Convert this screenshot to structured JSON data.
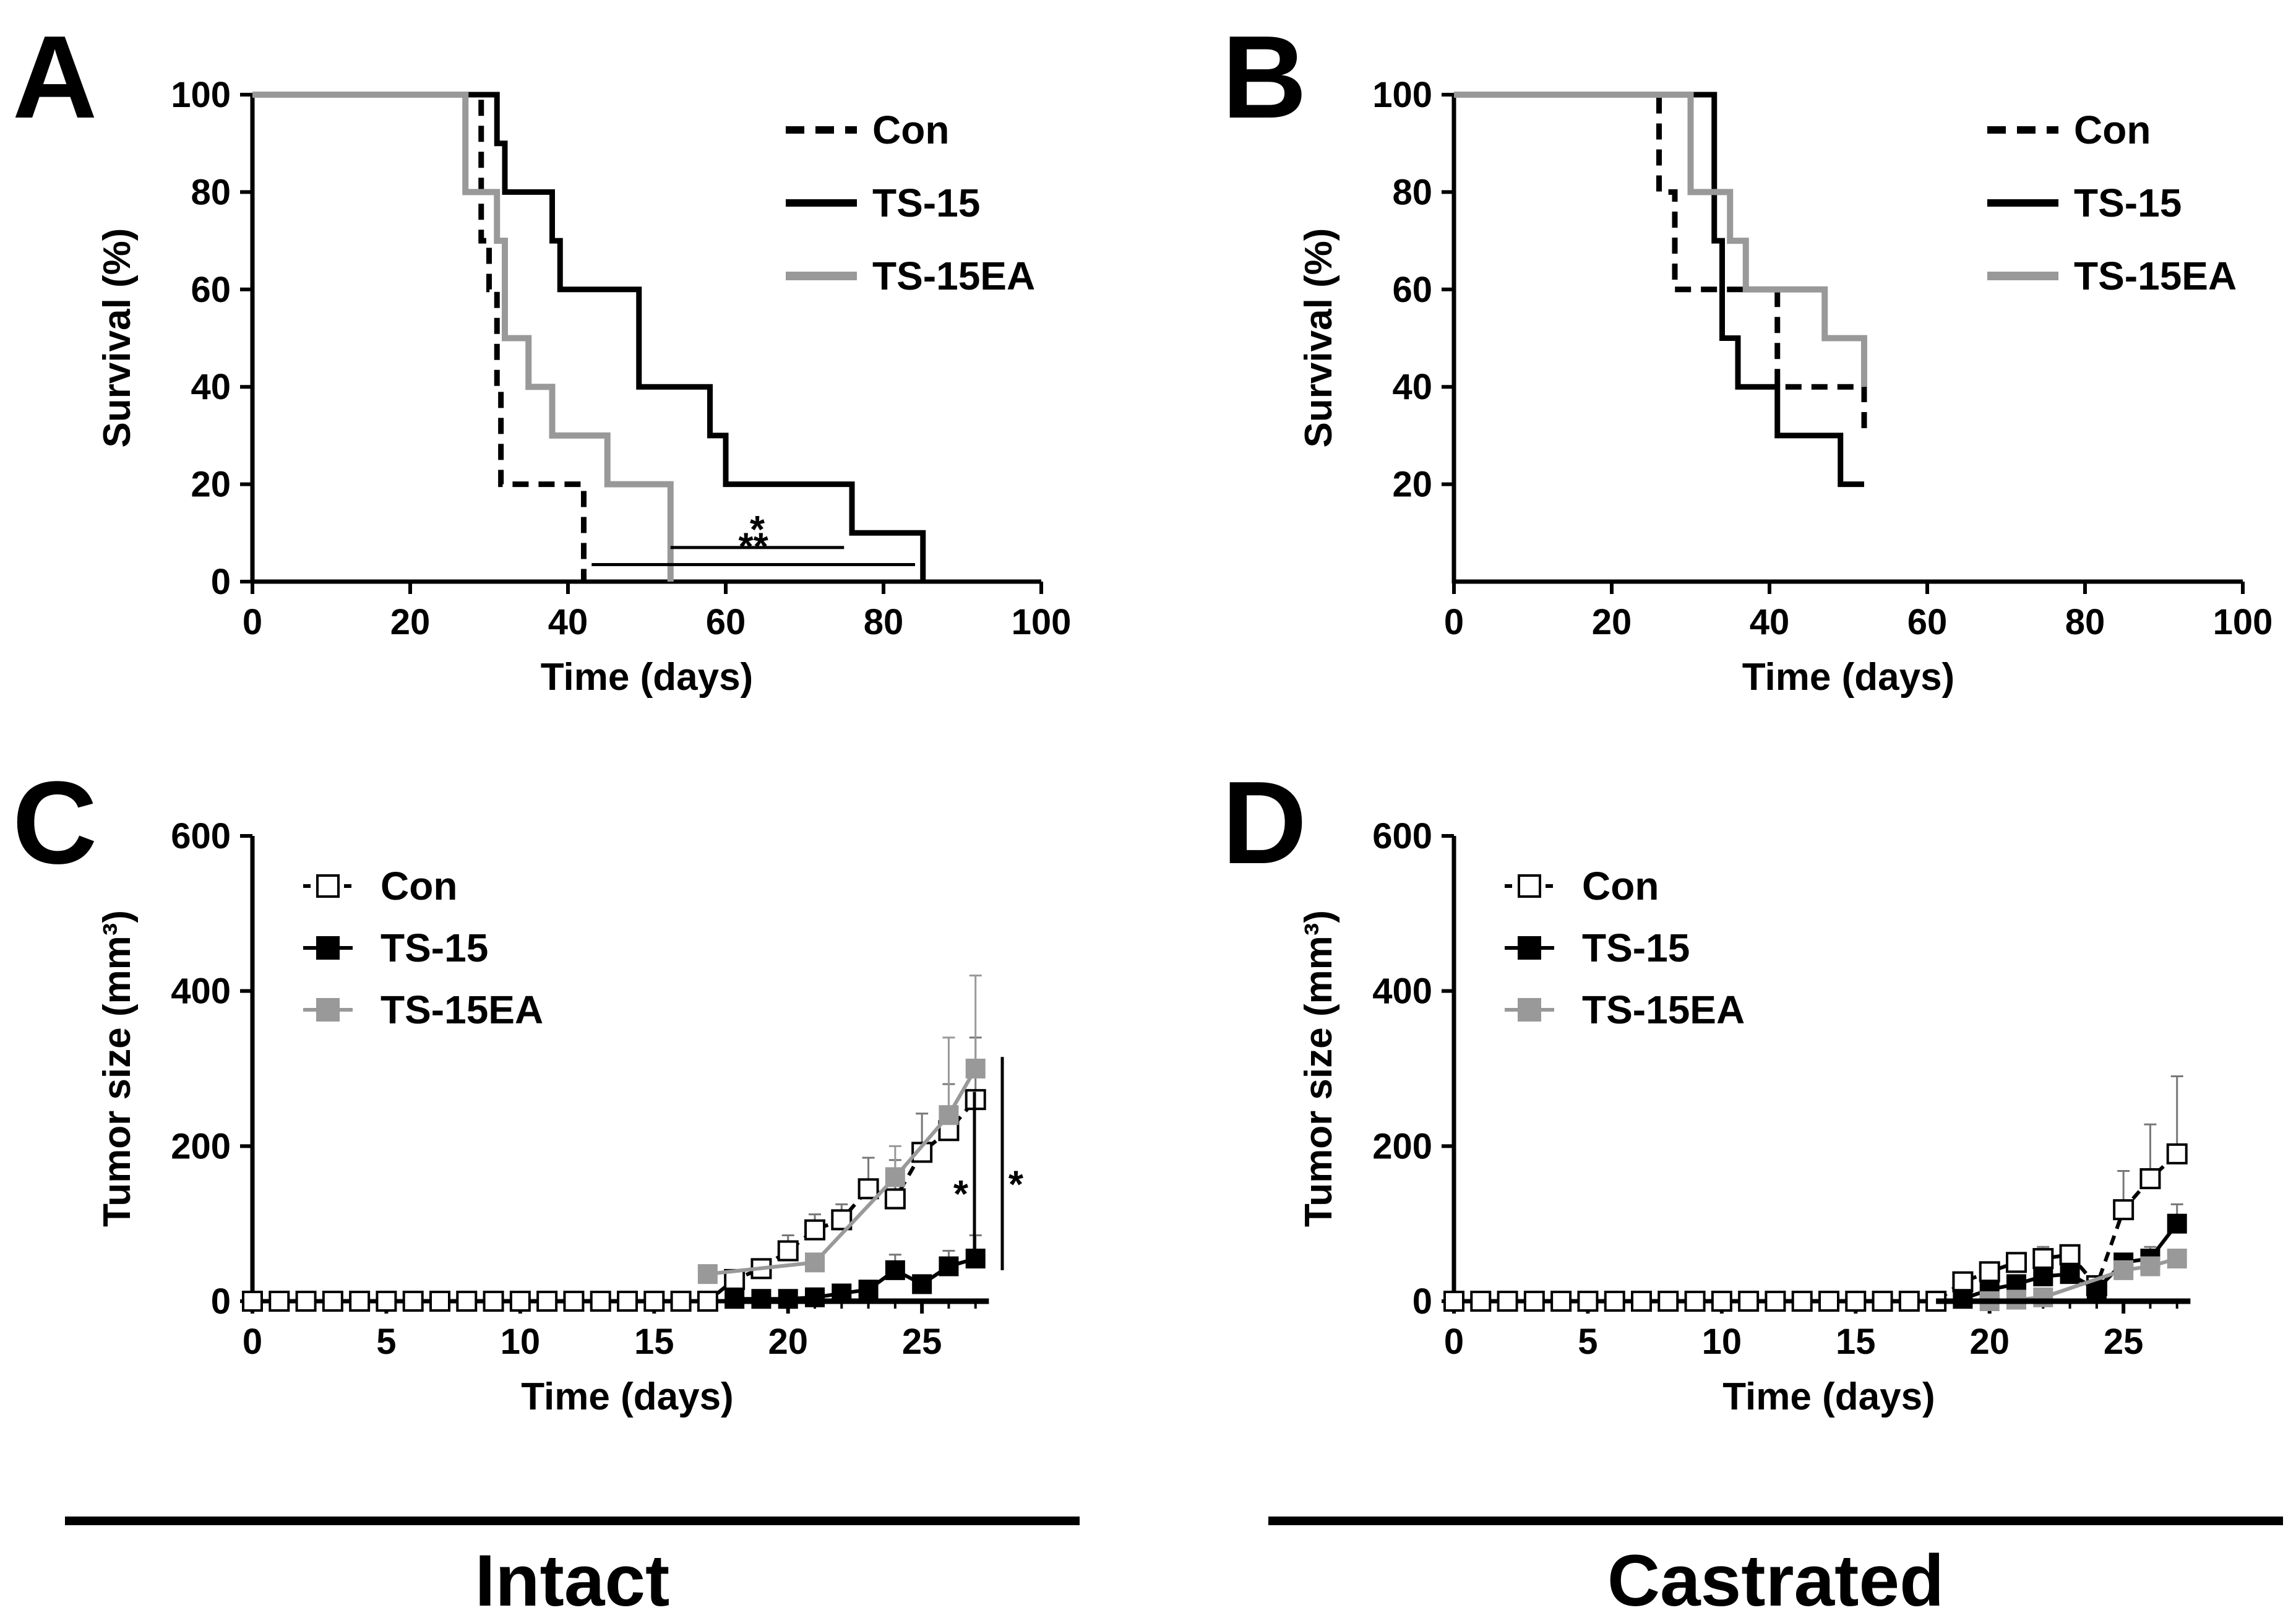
{
  "colors": {
    "con": "#000000",
    "ts15": "#000000",
    "ts15ea": "#999999",
    "axis": "#000000"
  },
  "groups": {
    "left": "Intact",
    "right": "Castrated"
  },
  "chart_data": [
    {
      "panel": "A",
      "type": "line",
      "subtype": "kaplan-meier",
      "xlabel": "Time (days)",
      "ylabel": "Survival (%)",
      "xlim": [
        0,
        100
      ],
      "ylim": [
        0,
        100
      ],
      "xticks": [
        "0",
        "20",
        "40",
        "60",
        "80",
        "100"
      ],
      "yticks": [
        "0",
        "20",
        "40",
        "60",
        "80",
        "100"
      ],
      "legend_position": "top-right",
      "series": [
        {
          "name": "Con",
          "key": "con",
          "style": "dashed",
          "x": [
            0,
            29,
            30,
            31,
            31.5,
            32,
            42
          ],
          "y": [
            100,
            70,
            60,
            40,
            20,
            20,
            0
          ]
        },
        {
          "name": "TS-15",
          "key": "ts15",
          "style": "solid",
          "x": [
            0,
            31,
            32,
            38,
            39,
            49,
            58,
            60,
            76,
            85
          ],
          "y": [
            100,
            90,
            80,
            70,
            60,
            40,
            30,
            20,
            10,
            0
          ]
        },
        {
          "name": "TS-15EA",
          "key": "ts15ea",
          "style": "solid",
          "x": [
            0,
            27,
            31,
            32,
            35,
            38,
            45,
            53
          ],
          "y": [
            100,
            80,
            70,
            50,
            40,
            30,
            20,
            0
          ]
        }
      ],
      "annotations": [
        {
          "label": "*",
          "x1": 53,
          "x2": 75,
          "y": 7
        },
        {
          "label": "**",
          "x1": 43,
          "x2": 84,
          "y": 3.5
        }
      ]
    },
    {
      "panel": "B",
      "type": "line",
      "subtype": "kaplan-meier",
      "xlabel": "Time (days)",
      "ylabel": "Survival (%)",
      "xlim": [
        0,
        100
      ],
      "ylim": [
        0,
        100
      ],
      "xticks": [
        "0",
        "20",
        "40",
        "60",
        "80",
        "100"
      ],
      "yticks": [
        "20",
        "40",
        "60",
        "80",
        "100"
      ],
      "legend_position": "top-right",
      "series": [
        {
          "name": "Con",
          "key": "con",
          "style": "dashed",
          "x": [
            0,
            26,
            28,
            41,
            52,
            52
          ],
          "y": [
            100,
            80,
            60,
            40,
            40,
            30
          ]
        },
        {
          "name": "TS-15",
          "key": "ts15",
          "style": "solid",
          "x": [
            0,
            33,
            34,
            36,
            38,
            41,
            49,
            52
          ],
          "y": [
            100,
            70,
            50,
            40,
            40,
            30,
            20,
            20
          ]
        },
        {
          "name": "TS-15EA",
          "key": "ts15ea",
          "style": "solid",
          "x": [
            0,
            30,
            31,
            35,
            37,
            47,
            49,
            52
          ],
          "y": [
            100,
            80,
            80,
            70,
            60,
            50,
            50,
            40
          ]
        }
      ],
      "annotations": []
    },
    {
      "panel": "C",
      "type": "line",
      "subtype": "tumor-growth",
      "xlabel": "Time (days)",
      "ylabel": "Tumor size (mm³)",
      "xlim": [
        0,
        28
      ],
      "ylim": [
        0,
        600
      ],
      "xticks": [
        "0",
        "5",
        "10",
        "15",
        "20",
        "25"
      ],
      "yticks": [
        "0",
        "200",
        "400",
        "600"
      ],
      "legend_position": "top-left",
      "series": [
        {
          "name": "Con",
          "key": "con",
          "marker": "open-square",
          "x": [
            0,
            1,
            2,
            3,
            4,
            5,
            6,
            7,
            8,
            9,
            10,
            11,
            12,
            13,
            14,
            15,
            16,
            17,
            18,
            19,
            20,
            21,
            22,
            23,
            24,
            25,
            26,
            27
          ],
          "y": [
            0,
            0,
            0,
            0,
            0,
            0,
            0,
            0,
            0,
            0,
            0,
            0,
            0,
            0,
            0,
            0,
            0,
            0,
            28,
            42,
            65,
            92,
            105,
            145,
            132,
            192,
            220,
            260
          ],
          "err": [
            0,
            0,
            0,
            0,
            0,
            0,
            0,
            0,
            0,
            0,
            0,
            0,
            0,
            0,
            0,
            0,
            0,
            0,
            5,
            10,
            20,
            20,
            20,
            40,
            50,
            50,
            60,
            80
          ]
        },
        {
          "name": "TS-15",
          "key": "ts15",
          "marker": "filled-square",
          "x": [
            18,
            19,
            20,
            21,
            22,
            23,
            24,
            25,
            26,
            27
          ],
          "y": [
            3,
            3,
            3,
            5,
            10,
            15,
            40,
            22,
            45,
            55
          ],
          "err": [
            0,
            0,
            0,
            0,
            5,
            5,
            20,
            8,
            20,
            30
          ]
        },
        {
          "name": "TS-15EA",
          "key": "ts15ea",
          "marker": "filled-square",
          "x": [
            17,
            21,
            24,
            26,
            27
          ],
          "y": [
            35,
            50,
            160,
            240,
            300
          ],
          "err": [
            5,
            10,
            40,
            100,
            120
          ]
        }
      ],
      "annotations": [
        {
          "label": "*",
          "y1": 60,
          "y2": 270
        },
        {
          "label": "*",
          "y1": 40,
          "y2": 315
        }
      ]
    },
    {
      "panel": "D",
      "type": "line",
      "subtype": "tumor-growth",
      "xlabel": "Time (days)",
      "ylabel": "Tumor size (mm³)",
      "xlim": [
        0,
        28
      ],
      "ylim": [
        0,
        600
      ],
      "xticks": [
        "0",
        "5",
        "10",
        "15",
        "20",
        "25"
      ],
      "yticks": [
        "0",
        "200",
        "400",
        "600"
      ],
      "legend_position": "top-left",
      "series": [
        {
          "name": "Con",
          "key": "con",
          "marker": "open-square",
          "x": [
            0,
            1,
            2,
            3,
            4,
            5,
            6,
            7,
            8,
            9,
            10,
            11,
            12,
            13,
            14,
            15,
            16,
            17,
            18,
            19,
            20,
            21,
            22,
            23,
            24,
            25,
            26,
            27
          ],
          "y": [
            0,
            0,
            0,
            0,
            0,
            0,
            0,
            0,
            0,
            0,
            0,
            0,
            0,
            0,
            0,
            0,
            0,
            0,
            0,
            25,
            38,
            50,
            55,
            60,
            20,
            118,
            158,
            190
          ],
          "err": [
            0,
            0,
            0,
            0,
            0,
            0,
            0,
            0,
            0,
            0,
            0,
            0,
            0,
            0,
            0,
            0,
            0,
            0,
            0,
            5,
            8,
            10,
            15,
            10,
            5,
            50,
            70,
            100
          ]
        },
        {
          "name": "TS-15",
          "key": "ts15",
          "marker": "filled-square",
          "x": [
            19,
            20,
            21,
            22,
            23,
            24,
            25,
            26,
            27
          ],
          "y": [
            3,
            15,
            22,
            32,
            35,
            15,
            50,
            55,
            100
          ],
          "err": [
            0,
            5,
            8,
            10,
            10,
            5,
            10,
            15,
            25
          ]
        },
        {
          "name": "TS-15EA",
          "key": "ts15ea",
          "marker": "filled-square",
          "x": [
            20,
            21,
            22,
            25,
            26,
            27
          ],
          "y": [
            0,
            2,
            5,
            40,
            45,
            55
          ],
          "err": [
            0,
            0,
            0,
            5,
            5,
            10
          ]
        }
      ],
      "annotations": []
    }
  ]
}
